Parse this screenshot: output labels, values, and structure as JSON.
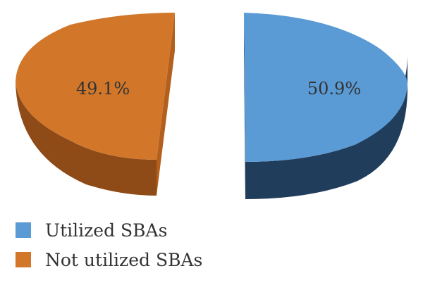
{
  "chart_data": {
    "type": "pie",
    "style": "3d-exploded",
    "slices": [
      {
        "label": "Utilized SBAs",
        "value": 50.9,
        "data_label": "50.9%",
        "color": "#5B9BD5",
        "side_color": "#1F3A5A"
      },
      {
        "label": "Not utilized SBAs",
        "value": 49.1,
        "data_label": "49.1%",
        "color": "#D2772A",
        "side_color": "#8E4A17"
      }
    ],
    "legend": {
      "placement": "bottom-left"
    }
  }
}
